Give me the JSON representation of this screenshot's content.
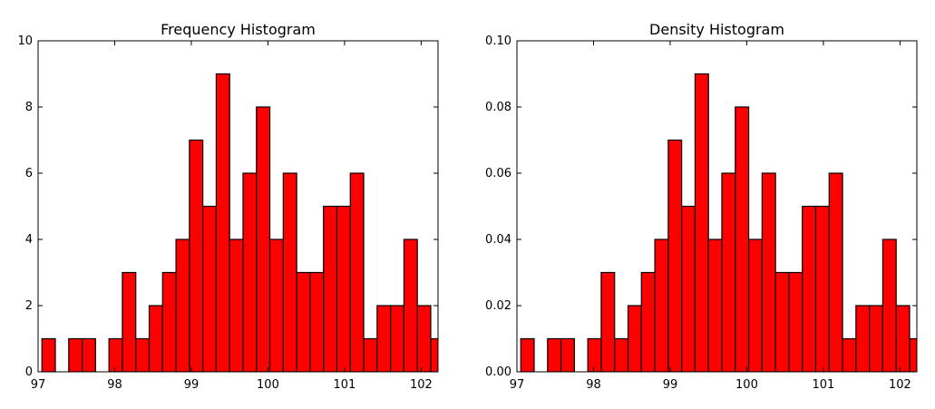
{
  "chart_data": [
    {
      "type": "bar",
      "title": "Frequency Histogram",
      "xlabel": "",
      "ylabel": "",
      "xlim": [
        97.0,
        102.22
      ],
      "ylim": [
        0,
        10
      ],
      "xticks": [
        "97",
        "98",
        "99",
        "100",
        "101",
        "102"
      ],
      "yticks": [
        "0",
        "2",
        "4",
        "6",
        "8",
        "10"
      ],
      "bin_edges": [
        97.05,
        97.225,
        97.4,
        97.575,
        97.75,
        97.925,
        98.1,
        98.275,
        98.45,
        98.625,
        98.8,
        98.975,
        99.15,
        99.325,
        99.5,
        99.675,
        99.85,
        100.025,
        100.2,
        100.375,
        100.55,
        100.725,
        100.9,
        101.075,
        101.25,
        101.425,
        101.6,
        101.775,
        101.95,
        102.125,
        102.3
      ],
      "values": [
        1,
        0,
        1,
        1,
        0,
        1,
        3,
        1,
        2,
        3,
        4,
        7,
        5,
        9,
        4,
        6,
        8,
        4,
        6,
        3,
        3,
        5,
        5,
        6,
        1,
        2,
        2,
        4,
        2,
        1
      ],
      "bar_color": "#ff0000",
      "edge_color": "#000000",
      "grid": false
    },
    {
      "type": "bar",
      "title": "Density Histogram",
      "xlabel": "",
      "ylabel": "",
      "xlim": [
        97.0,
        102.22
      ],
      "ylim": [
        0,
        0.1
      ],
      "xticks": [
        "97",
        "98",
        "99",
        "100",
        "101",
        "102"
      ],
      "yticks": [
        "0.00",
        "0.02",
        "0.04",
        "0.06",
        "0.08",
        "0.10"
      ],
      "bin_edges": [
        97.05,
        97.225,
        97.4,
        97.575,
        97.75,
        97.925,
        98.1,
        98.275,
        98.45,
        98.625,
        98.8,
        98.975,
        99.15,
        99.325,
        99.5,
        99.675,
        99.85,
        100.025,
        100.2,
        100.375,
        100.55,
        100.725,
        100.9,
        101.075,
        101.25,
        101.425,
        101.6,
        101.775,
        101.95,
        102.125,
        102.3
      ],
      "values": [
        0.01,
        0,
        0.01,
        0.01,
        0,
        0.01,
        0.03,
        0.01,
        0.02,
        0.03,
        0.04,
        0.07,
        0.05,
        0.09,
        0.04,
        0.06,
        0.08,
        0.04,
        0.06,
        0.03,
        0.03,
        0.05,
        0.05,
        0.06,
        0.01,
        0.02,
        0.02,
        0.04,
        0.02,
        0.01
      ],
      "bar_color": "#ff0000",
      "edge_color": "#000000",
      "grid": false
    }
  ]
}
